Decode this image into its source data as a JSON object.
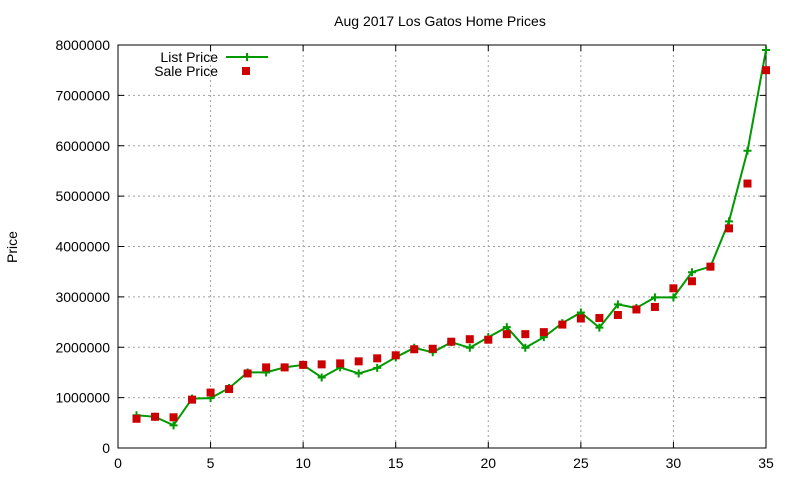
{
  "chart_data": {
    "type": "line",
    "title": "Aug 2017 Los Gatos Home Prices",
    "xlabel": "",
    "ylabel": "Price",
    "xlim": [
      0,
      35
    ],
    "ylim": [
      0,
      8000000
    ],
    "xticks": [
      0,
      5,
      10,
      15,
      20,
      25,
      30,
      35
    ],
    "yticks": [
      0,
      1000000,
      2000000,
      3000000,
      4000000,
      5000000,
      6000000,
      7000000,
      8000000
    ],
    "grid": true,
    "legend_position": "top-left",
    "x": [
      1,
      2,
      3,
      4,
      5,
      6,
      7,
      8,
      9,
      10,
      11,
      12,
      13,
      14,
      15,
      16,
      17,
      18,
      19,
      20,
      21,
      22,
      23,
      24,
      25,
      26,
      27,
      28,
      29,
      30,
      31,
      32,
      33,
      34,
      35
    ],
    "series": [
      {
        "name": "List Price",
        "style": "line-plus",
        "color": "#009900",
        "values": [
          650000,
          620000,
          450000,
          980000,
          990000,
          1190000,
          1500000,
          1500000,
          1600000,
          1650000,
          1400000,
          1600000,
          1480000,
          1590000,
          1800000,
          1990000,
          1900000,
          2100000,
          1990000,
          2200000,
          2400000,
          1990000,
          2200000,
          2480000,
          2690000,
          2390000,
          2850000,
          2780000,
          2990000,
          2990000,
          3490000,
          3600000,
          4500000,
          5900000,
          7900000
        ]
      },
      {
        "name": "Sale Price",
        "style": "square",
        "color": "#cc0000",
        "values": [
          580000,
          620000,
          610000,
          960000,
          1100000,
          1170000,
          1480000,
          1600000,
          1600000,
          1650000,
          1660000,
          1680000,
          1720000,
          1780000,
          1840000,
          1960000,
          1970000,
          2110000,
          2160000,
          2150000,
          2260000,
          2260000,
          2300000,
          2450000,
          2570000,
          2580000,
          2640000,
          2750000,
          2800000,
          3170000,
          3310000,
          3600000,
          4360000,
          5250000,
          7500000
        ]
      }
    ]
  }
}
